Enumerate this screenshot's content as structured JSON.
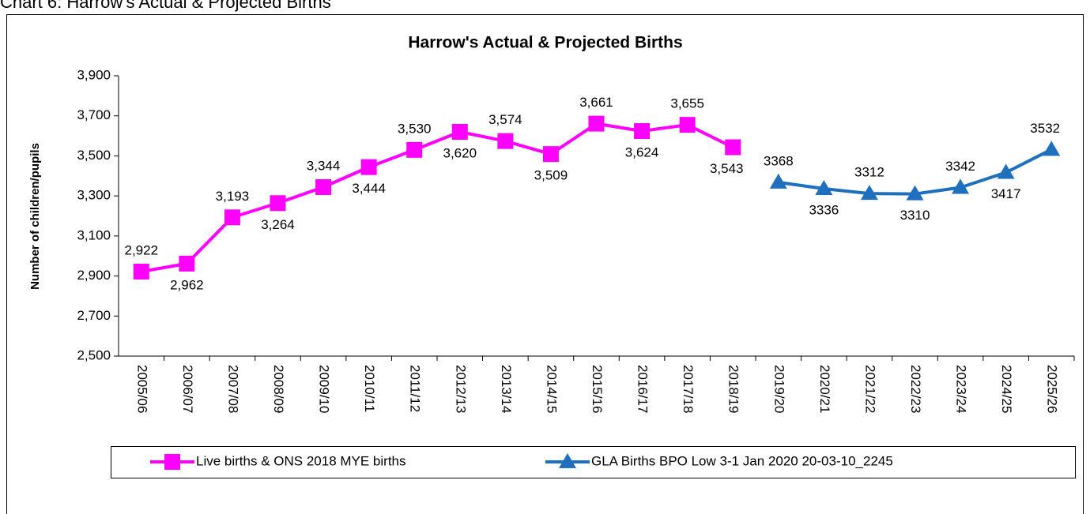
{
  "caption": "Chart 6: Harrow's Actual & Projected Births",
  "chart_data": {
    "type": "line",
    "title": "Harrow's Actual & Projected Births",
    "y_label": "Number of children/pupils",
    "categories": [
      "2005/06",
      "2006/07",
      "2007/08",
      "2008/09",
      "2009/10",
      "2010/11",
      "2011/12",
      "2012/13",
      "2013/14",
      "2014/15",
      "2015/16",
      "2016/17",
      "2017/18",
      "2018/19",
      "2019/20",
      "2020/21",
      "2021/22",
      "2022/23",
      "2023/24",
      "2024/25",
      "2025/26"
    ],
    "series": [
      {
        "name": "Live births & ONS 2018 MYE births",
        "color": "#ff00ff",
        "marker": "square",
        "values": [
          2922,
          2962,
          3193,
          3264,
          3344,
          3444,
          3530,
          3620,
          3574,
          3509,
          3661,
          3624,
          3655,
          3543,
          null,
          null,
          null,
          null,
          null,
          null,
          null
        ],
        "value_labels": [
          "2,922",
          "2,962",
          "3,193",
          "3,264",
          "3,344",
          "3,444",
          "3,530",
          "3,620",
          "3,574",
          "3,509",
          "3,661",
          "3,624",
          "3,655",
          "3,543",
          null,
          null,
          null,
          null,
          null,
          null,
          null
        ]
      },
      {
        "name": "GLA Births BPO Low 3-1 Jan 2020 20-03-10_2245",
        "color": "#1f6fbf",
        "marker": "triangle",
        "values": [
          null,
          null,
          null,
          null,
          null,
          null,
          null,
          null,
          null,
          null,
          null,
          null,
          null,
          null,
          3368,
          3336,
          3312,
          3310,
          3342,
          3417,
          3532
        ]
      }
    ],
    "ylim": [
      2500,
      3900
    ],
    "yticks": [
      {
        "value": 2500,
        "label": "2,500"
      },
      {
        "value": 2700,
        "label": "2,700"
      },
      {
        "value": 2900,
        "label": "2,900"
      },
      {
        "value": 3100,
        "label": "3,100"
      },
      {
        "value": 3300,
        "label": "3,300"
      },
      {
        "value": 3500,
        "label": "3,500"
      },
      {
        "value": 3700,
        "label": "3,700"
      },
      {
        "value": 3900,
        "label": "3,900"
      }
    ],
    "grid": false,
    "legend": "bottom"
  }
}
